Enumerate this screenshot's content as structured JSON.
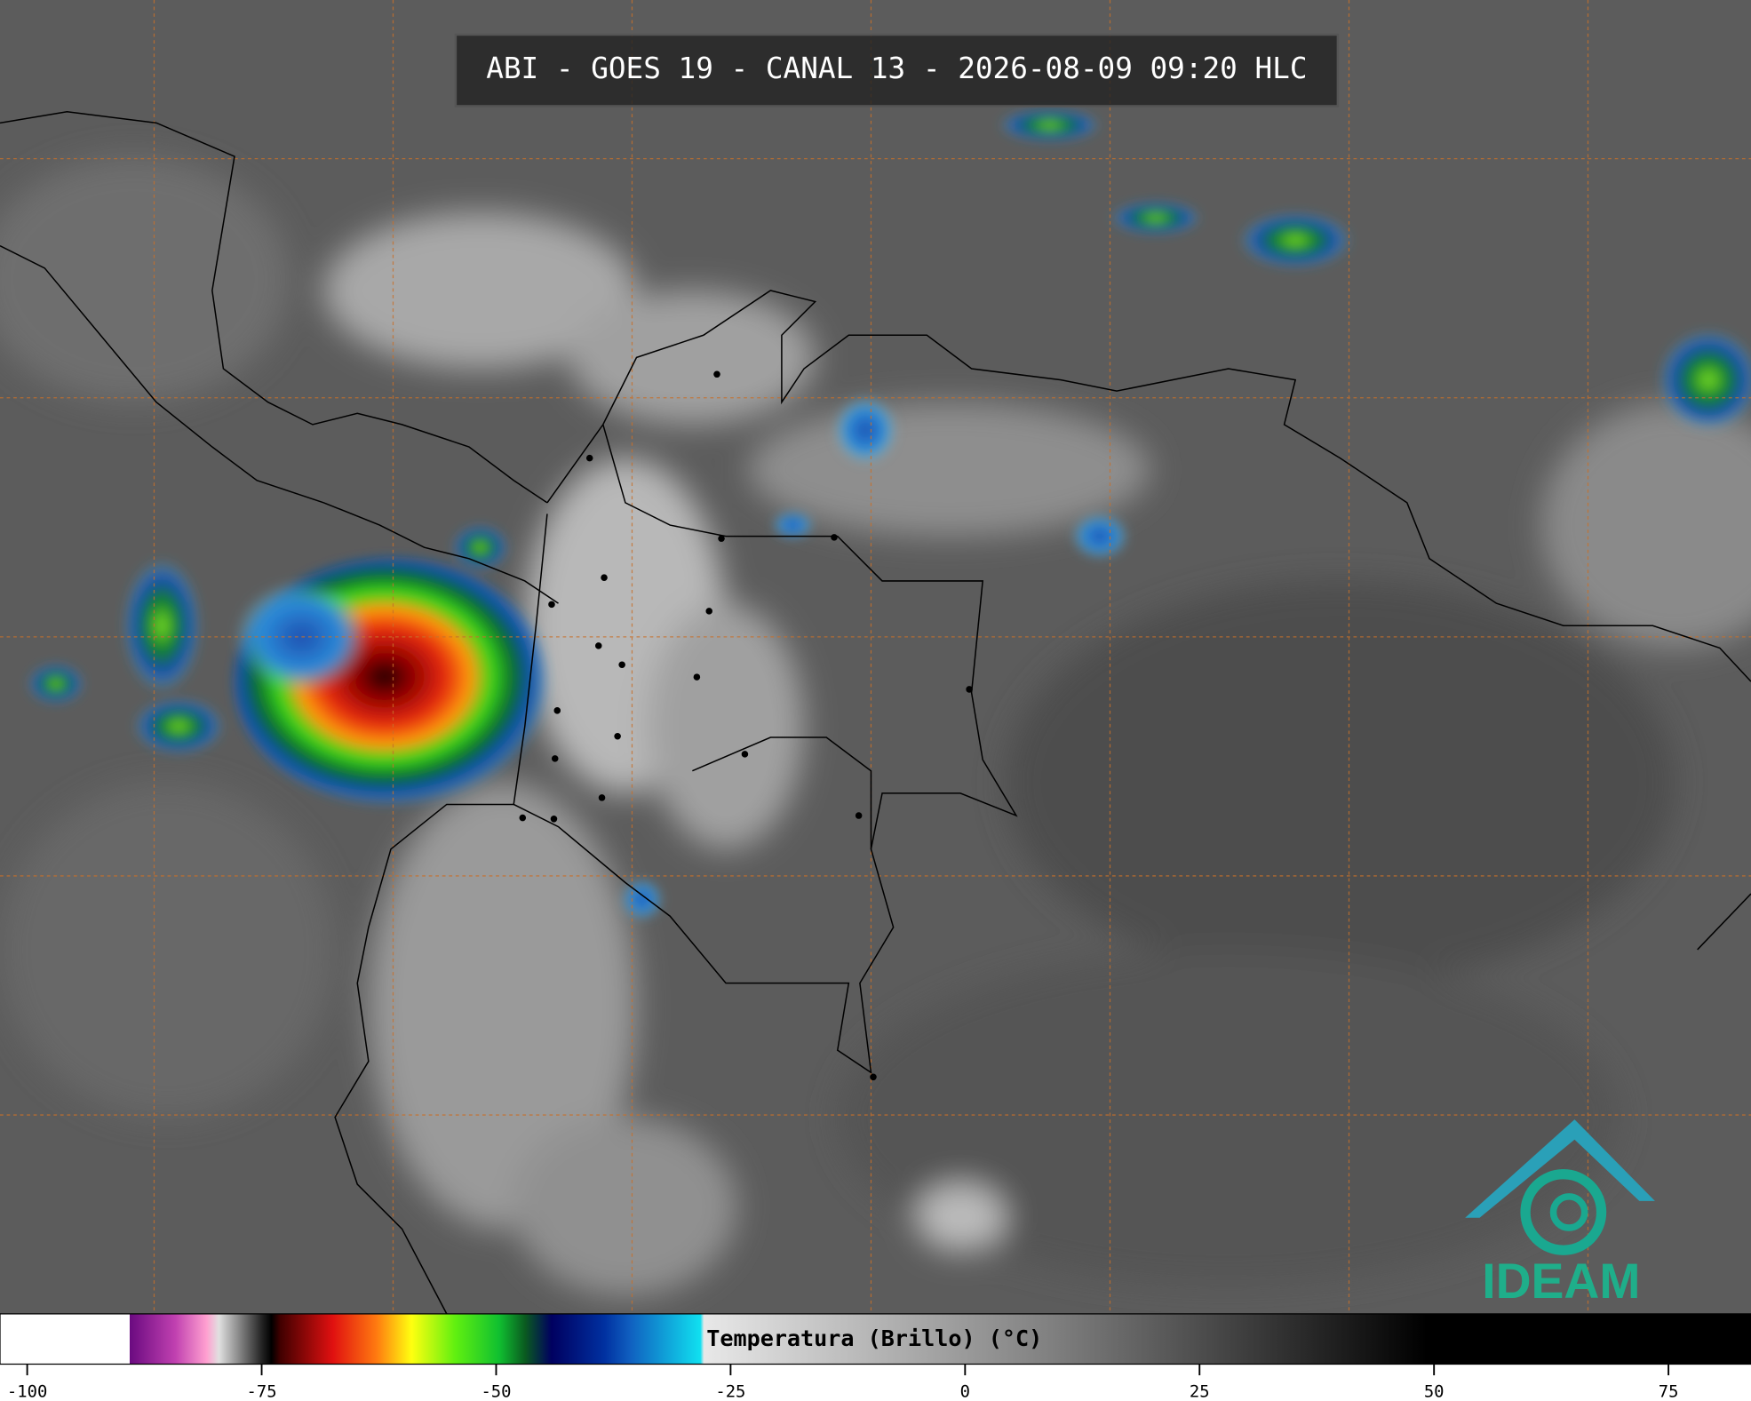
{
  "title": "ABI - GOES 19 - CANAL 13 - 2026-08-09 09:20 HLC",
  "logo": "IDEAM",
  "colorbar": {
    "label": "Temperatura (Brillo) (°C)",
    "lim": [
      -102.9,
      83.8
    ],
    "ticks": [
      -100,
      -75,
      -50,
      -25,
      0,
      25,
      50,
      75
    ]
  }
}
